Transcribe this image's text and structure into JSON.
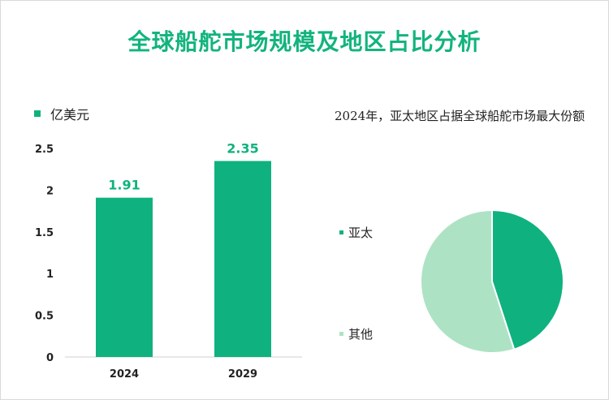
{
  "title": "全球船舵市场规模及地区占比分析",
  "note": "2024年，亚太地区占据全球船舵市场最大份额",
  "colors": {
    "primary": "#0fb27e",
    "secondary": "#ade3c4",
    "title": "#12b47c"
  },
  "chart_data": [
    {
      "type": "bar",
      "categories": [
        "2024",
        "2029"
      ],
      "values": [
        1.91,
        2.35
      ],
      "data_labels": [
        "1.91",
        "2.35"
      ],
      "legend": "亿美元",
      "ylim": [
        0,
        2.5
      ],
      "yticks": [
        0,
        0.5,
        1,
        1.5,
        2,
        2.5
      ],
      "ytick_labels": [
        "0",
        "0.5",
        "1",
        "1.5",
        "2",
        "2.5"
      ],
      "grid": false
    },
    {
      "type": "pie",
      "labels": [
        "亚太",
        "其他"
      ],
      "values": [
        45,
        55
      ]
    }
  ]
}
